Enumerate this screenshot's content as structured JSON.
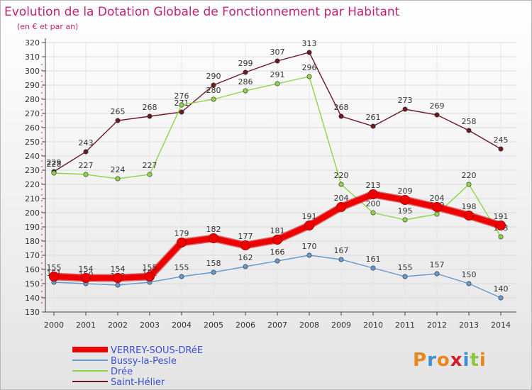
{
  "chart_data": {
    "type": "line",
    "title": "Evolution de la Dotation Globale de Fonctionnement par Habitant",
    "subtitle": "(en € et par an)",
    "x": [
      "2000",
      "2001",
      "2002",
      "2003",
      "2004",
      "2005",
      "2006",
      "2007",
      "2008",
      "2009",
      "2010",
      "2011",
      "2012",
      "2013",
      "2014"
    ],
    "ylim": [
      130,
      320
    ],
    "ytick_step": 10,
    "series": [
      {
        "name": "Saint-Hélier",
        "color": "#6b1a22",
        "values": [
          229,
          243,
          265,
          268,
          271,
          290,
          299,
          307,
          313,
          268,
          261,
          273,
          269,
          258,
          245
        ]
      },
      {
        "name": "Drée",
        "color": "#8fd44a",
        "values": [
          228,
          227,
          224,
          227,
          276,
          280,
          286,
          291,
          296,
          220,
          200,
          195,
          199,
          220,
          183
        ]
      },
      {
        "name": "Bussy-la-Pesle",
        "color": "#6699cc",
        "values": [
          151,
          150,
          149,
          151,
          155,
          158,
          162,
          166,
          170,
          167,
          161,
          155,
          157,
          150,
          140
        ]
      },
      {
        "name": "VERREY-SOUS-DRéE",
        "color": "#ee0000",
        "values": [
          155,
          154,
          154,
          155,
          179,
          182,
          177,
          181,
          191,
          204,
          213,
          209,
          204,
          198,
          191
        ]
      }
    ],
    "legend_order": [
      "VERREY-SOUS-DRéE",
      "Bussy-la-Pesle",
      "Drée",
      "Saint-Hélier"
    ],
    "legend_position": "bottom-left"
  },
  "brand": {
    "logo_text": "Proxiti",
    "colors": [
      "#e8871e",
      "#3a8fd6",
      "#e8871e",
      "#d11f2a",
      "#3a8fd6",
      "#8cc63f"
    ]
  }
}
